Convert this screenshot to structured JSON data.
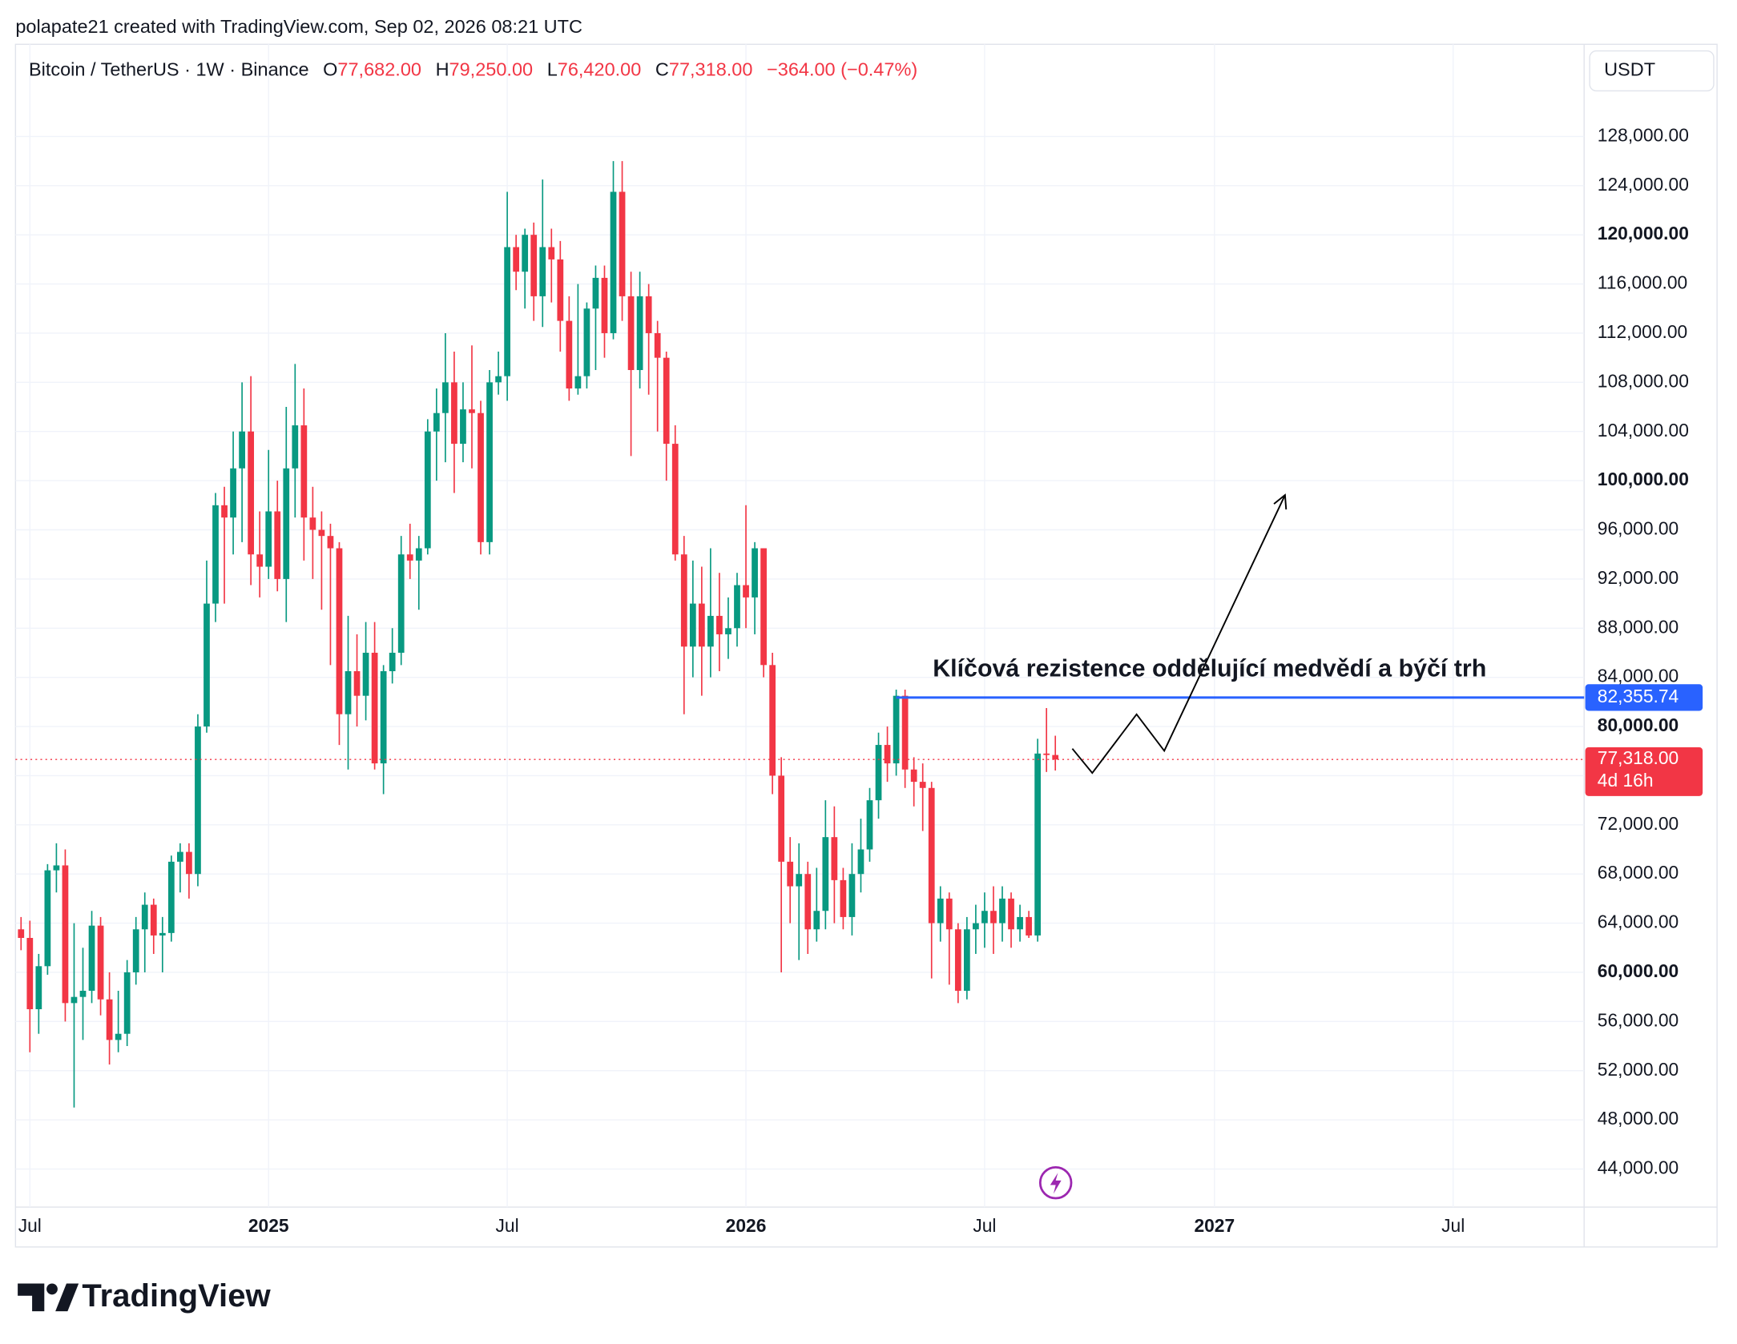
{
  "header": {
    "attribution": "polapate21 created with TradingView.com, Sep 02, 2026 08:21 UTC"
  },
  "legend": {
    "symbol": "Bitcoin / TetherUS · 1W · Binance",
    "o_key": "O",
    "open": "77,682.00",
    "h_key": "H",
    "high": "79,250.00",
    "l_key": "L",
    "low": "76,420.00",
    "c_key": "C",
    "close": "77,318.00",
    "change": "−364.00 (−0.47%)"
  },
  "currency": "USDT",
  "footer": {
    "brand": "TradingView"
  },
  "chart_data": {
    "type": "candlestick",
    "up_color": "#089981",
    "down_color": "#f23645",
    "grid": true,
    "annotation": "Klíčová rezistence oddělující medvědí a býčí trh",
    "resistance": {
      "value": 82355.74,
      "label": "82,355.74",
      "color": "#2962ff"
    },
    "last_price": {
      "value": 77318,
      "label": "77,318.00",
      "countdown": "4d 16h",
      "color": "#f23645"
    },
    "ylim": [
      40900,
      135500
    ],
    "yticks": [
      {
        "value": 44000,
        "label": "44,000.00"
      },
      {
        "value": 48000,
        "label": "48,000.00"
      },
      {
        "value": 52000,
        "label": "52,000.00"
      },
      {
        "value": 56000,
        "label": "56,000.00"
      },
      {
        "value": 60000,
        "label": "60,000.00"
      },
      {
        "value": 64000,
        "label": "64,000.00"
      },
      {
        "value": 68000,
        "label": "68,000.00"
      },
      {
        "value": 72000,
        "label": "72,000.00"
      },
      {
        "value": 76000,
        "label": "76,000.00"
      },
      {
        "value": 80000,
        "label": "80,000.00"
      },
      {
        "value": 84000,
        "label": "84,000.00"
      },
      {
        "value": 88000,
        "label": "88,000.00"
      },
      {
        "value": 92000,
        "label": "92,000.00"
      },
      {
        "value": 96000,
        "label": "96,000.00"
      },
      {
        "value": 100000,
        "label": "100,000.00"
      },
      {
        "value": 104000,
        "label": "104,000.00"
      },
      {
        "value": 108000,
        "label": "108,000.00"
      },
      {
        "value": 112000,
        "label": "112,000.00"
      },
      {
        "value": 116000,
        "label": "116,000.00"
      },
      {
        "value": 120000,
        "label": "120,000.00"
      },
      {
        "value": 124000,
        "label": "124,000.00"
      },
      {
        "value": 128000,
        "label": "128,000.00"
      }
    ],
    "categories": [
      null,
      "Jul",
      null,
      null,
      null,
      null,
      null,
      null,
      null,
      null,
      null,
      null,
      null,
      null,
      null,
      null,
      null,
      null,
      null,
      null,
      null,
      null,
      null,
      null,
      null,
      null,
      null,
      null,
      "2025",
      null,
      null,
      null,
      null,
      null,
      null,
      null,
      null,
      null,
      null,
      null,
      null,
      null,
      null,
      null,
      null,
      null,
      null,
      null,
      null,
      null,
      null,
      null,
      null,
      null,
      null,
      "Jul",
      null,
      null,
      null,
      null,
      null,
      null,
      null,
      null,
      null,
      null,
      null,
      null,
      null,
      null,
      null,
      null,
      null,
      null,
      null,
      null,
      null,
      null,
      null,
      null,
      null,
      null,
      "2026",
      null,
      null,
      null,
      null,
      null,
      null,
      null,
      null,
      null,
      null,
      null,
      null,
      null,
      null,
      null,
      null,
      null,
      null,
      null,
      null,
      null,
      null,
      null,
      null,
      null,
      null,
      "Jul",
      null,
      null,
      null,
      null,
      null,
      null,
      null,
      null,
      null,
      null,
      null,
      null,
      null,
      null,
      null,
      null,
      null,
      null,
      null,
      null,
      null,
      null,
      null,
      null,
      null,
      "2027",
      null,
      null,
      null,
      null,
      null,
      null,
      null,
      null,
      null,
      null,
      null,
      null,
      null,
      null,
      null,
      null,
      null,
      null,
      null,
      null,
      null,
      null,
      null,
      null,
      null,
      null,
      "Jul",
      null,
      null,
      null,
      null,
      null,
      null,
      null,
      null,
      null,
      null,
      null,
      null,
      null,
      null
    ],
    "open": [
      63500,
      62800,
      57000,
      60500,
      68300,
      68700,
      57500,
      58000,
      58500,
      63800,
      57800,
      54500,
      55000,
      60000,
      63500,
      65500,
      63000,
      63200,
      69000,
      69800,
      68000,
      80000,
      90000,
      98000,
      97000,
      101000,
      104000,
      94000,
      93000,
      97500,
      92000,
      101000,
      104500,
      97000,
      96000,
      95500,
      94500,
      81000,
      84500,
      82500,
      86000,
      77000,
      84500,
      86000,
      94000,
      93500,
      94500,
      104000,
      105500,
      108000,
      103000,
      105800,
      105500,
      95000,
      108000,
      108500,
      119000,
      117000,
      120000,
      115000,
      119000,
      118000,
      113000,
      107500,
      108500,
      114000,
      116500,
      112000,
      123500,
      115000,
      109000,
      115000,
      112000,
      110000,
      103000,
      94000,
      86500,
      90000,
      86500,
      89000,
      87500,
      88000,
      91500,
      90500,
      94500,
      85000,
      76000,
      69000,
      67000,
      68000,
      63500,
      65000,
      71000,
      67500,
      64500,
      68000,
      70000,
      74000,
      78500,
      77000,
      82500,
      76500,
      75500,
      75000,
      64000,
      66000,
      63500,
      58500,
      63500,
      64000,
      65000,
      64000,
      66000,
      63500,
      64500,
      63000,
      77800,
      77682,
      null,
      null,
      null,
      null,
      null,
      null,
      null,
      null,
      null,
      null,
      null,
      null,
      null,
      null,
      null,
      null,
      null,
      null,
      null,
      null,
      null,
      null,
      null,
      null,
      null,
      null,
      null,
      null,
      null,
      null,
      null,
      null,
      null,
      null,
      null,
      null,
      null,
      null,
      null,
      null,
      null,
      null,
      null,
      null,
      null,
      null,
      null,
      null,
      null,
      null,
      null,
      null,
      null,
      null,
      null,
      null,
      null,
      null,
      null
    ],
    "high": [
      64500,
      64200,
      61500,
      68800,
      70500,
      70000,
      64000,
      62000,
      65000,
      64500,
      60000,
      58500,
      61000,
      64500,
      66500,
      66000,
      64500,
      69500,
      70500,
      70500,
      81000,
      93500,
      99000,
      99500,
      104000,
      108000,
      108500,
      97500,
      102500,
      100000,
      106000,
      109500,
      107500,
      99500,
      97500,
      96500,
      95000,
      89000,
      87500,
      88500,
      88500,
      85000,
      88000,
      95500,
      96500,
      95500,
      105000,
      107500,
      112000,
      110500,
      108000,
      111000,
      106500,
      109000,
      110500,
      123500,
      120000,
      120500,
      121000,
      124500,
      120500,
      119500,
      115000,
      116000,
      114500,
      117500,
      117500,
      126000,
      126000,
      117000,
      117000,
      116000,
      113000,
      110500,
      104500,
      95500,
      93500,
      93000,
      94500,
      92500,
      90500,
      92500,
      98000,
      95000,
      94500,
      86000,
      77500,
      71000,
      70500,
      69000,
      68500,
      74000,
      73500,
      68500,
      70500,
      72500,
      75000,
      79500,
      80000,
      83000,
      83000,
      77500,
      77000,
      75500,
      67000,
      66500,
      64000,
      64500,
      65500,
      66500,
      67000,
      67000,
      66500,
      65500,
      65000,
      79000,
      81500,
      79250,
      null,
      null,
      null,
      null,
      null,
      null,
      null,
      null,
      null,
      null,
      null,
      null,
      null,
      null,
      null,
      null,
      null,
      null,
      null,
      null,
      null,
      null,
      null,
      null,
      null,
      null,
      null,
      null,
      null,
      null,
      null,
      null,
      null,
      null,
      null,
      null,
      null,
      null,
      null,
      null,
      null,
      null,
      null,
      null,
      null,
      null,
      null,
      null,
      null,
      null,
      null,
      null,
      null,
      null,
      null,
      null,
      null,
      null,
      null
    ],
    "low": [
      61800,
      53500,
      55000,
      59800,
      66500,
      56000,
      49000,
      54500,
      57500,
      56500,
      52500,
      53500,
      54000,
      59000,
      60000,
      61500,
      60000,
      62500,
      66500,
      66000,
      67000,
      79500,
      88500,
      90000,
      94000,
      95000,
      91500,
      90500,
      92000,
      91000,
      88500,
      97000,
      93500,
      92000,
      89500,
      85000,
      78500,
      76500,
      80000,
      80500,
      76500,
      74500,
      83500,
      85000,
      92000,
      89500,
      94000,
      100000,
      101500,
      99000,
      101500,
      101000,
      94000,
      94000,
      107000,
      106500,
      115500,
      114000,
      113000,
      112500,
      114500,
      110500,
      106500,
      107000,
      107500,
      109000,
      110000,
      111500,
      113000,
      102000,
      107500,
      107000,
      104000,
      100000,
      93500,
      81000,
      84000,
      82500,
      84000,
      84500,
      85500,
      86500,
      88000,
      87500,
      84000,
      74500,
      60000,
      64000,
      61000,
      61500,
      62500,
      63500,
      64000,
      63500,
      63000,
      66500,
      69000,
      72500,
      75500,
      76000,
      75000,
      73500,
      71500,
      59500,
      62500,
      59000,
      57500,
      57800,
      61500,
      62000,
      61500,
      62500,
      62000,
      62500,
      62800,
      62500,
      76300,
      76420,
      null,
      null,
      null,
      null,
      null,
      null,
      null,
      null,
      null,
      null,
      null,
      null,
      null,
      null,
      null,
      null,
      null,
      null,
      null,
      null,
      null,
      null,
      null,
      null,
      null,
      null,
      null,
      null,
      null,
      null,
      null,
      null,
      null,
      null,
      null,
      null,
      null,
      null,
      null,
      null,
      null,
      null,
      null,
      null,
      null,
      null,
      null,
      null,
      null,
      null,
      null,
      null,
      null,
      null,
      null,
      null,
      null,
      null,
      null
    ],
    "close": [
      62800,
      57000,
      60500,
      68300,
      68700,
      57500,
      58000,
      58500,
      63800,
      57800,
      54500,
      55000,
      60000,
      63500,
      65500,
      63000,
      63200,
      69000,
      69800,
      68000,
      80000,
      90000,
      98000,
      97000,
      101000,
      104000,
      94000,
      93000,
      97500,
      92000,
      101000,
      104500,
      97000,
      96000,
      95500,
      94500,
      81000,
      84500,
      82500,
      86000,
      77000,
      84500,
      86000,
      94000,
      93500,
      94500,
      104000,
      105500,
      108000,
      103000,
      105800,
      105500,
      95000,
      108000,
      108500,
      119000,
      117000,
      120000,
      115000,
      119000,
      118000,
      113000,
      107500,
      108500,
      114000,
      116500,
      112000,
      123500,
      115000,
      109000,
      115000,
      112000,
      110000,
      103000,
      94000,
      86500,
      90000,
      86500,
      89000,
      87500,
      88000,
      91500,
      90500,
      94500,
      85000,
      76000,
      69000,
      67000,
      68000,
      63500,
      65000,
      71000,
      67500,
      64500,
      68000,
      70000,
      74000,
      78500,
      77000,
      82500,
      76500,
      75500,
      75000,
      64000,
      66000,
      63500,
      58500,
      63500,
      64000,
      65000,
      64000,
      66000,
      63500,
      64500,
      63000,
      77800,
      77682,
      77318,
      null,
      null,
      null,
      null,
      null,
      null,
      null,
      null,
      null,
      null,
      null,
      null,
      null,
      null,
      null,
      null,
      null,
      null,
      null,
      null,
      null,
      null,
      null,
      null,
      null,
      null,
      null,
      null,
      null,
      null,
      null,
      null,
      null,
      null,
      null,
      null,
      null,
      null,
      null,
      null,
      null,
      null,
      null,
      null,
      null,
      null,
      null,
      null,
      null,
      null,
      null,
      null,
      null,
      null,
      null,
      null,
      null,
      null,
      null
    ]
  }
}
